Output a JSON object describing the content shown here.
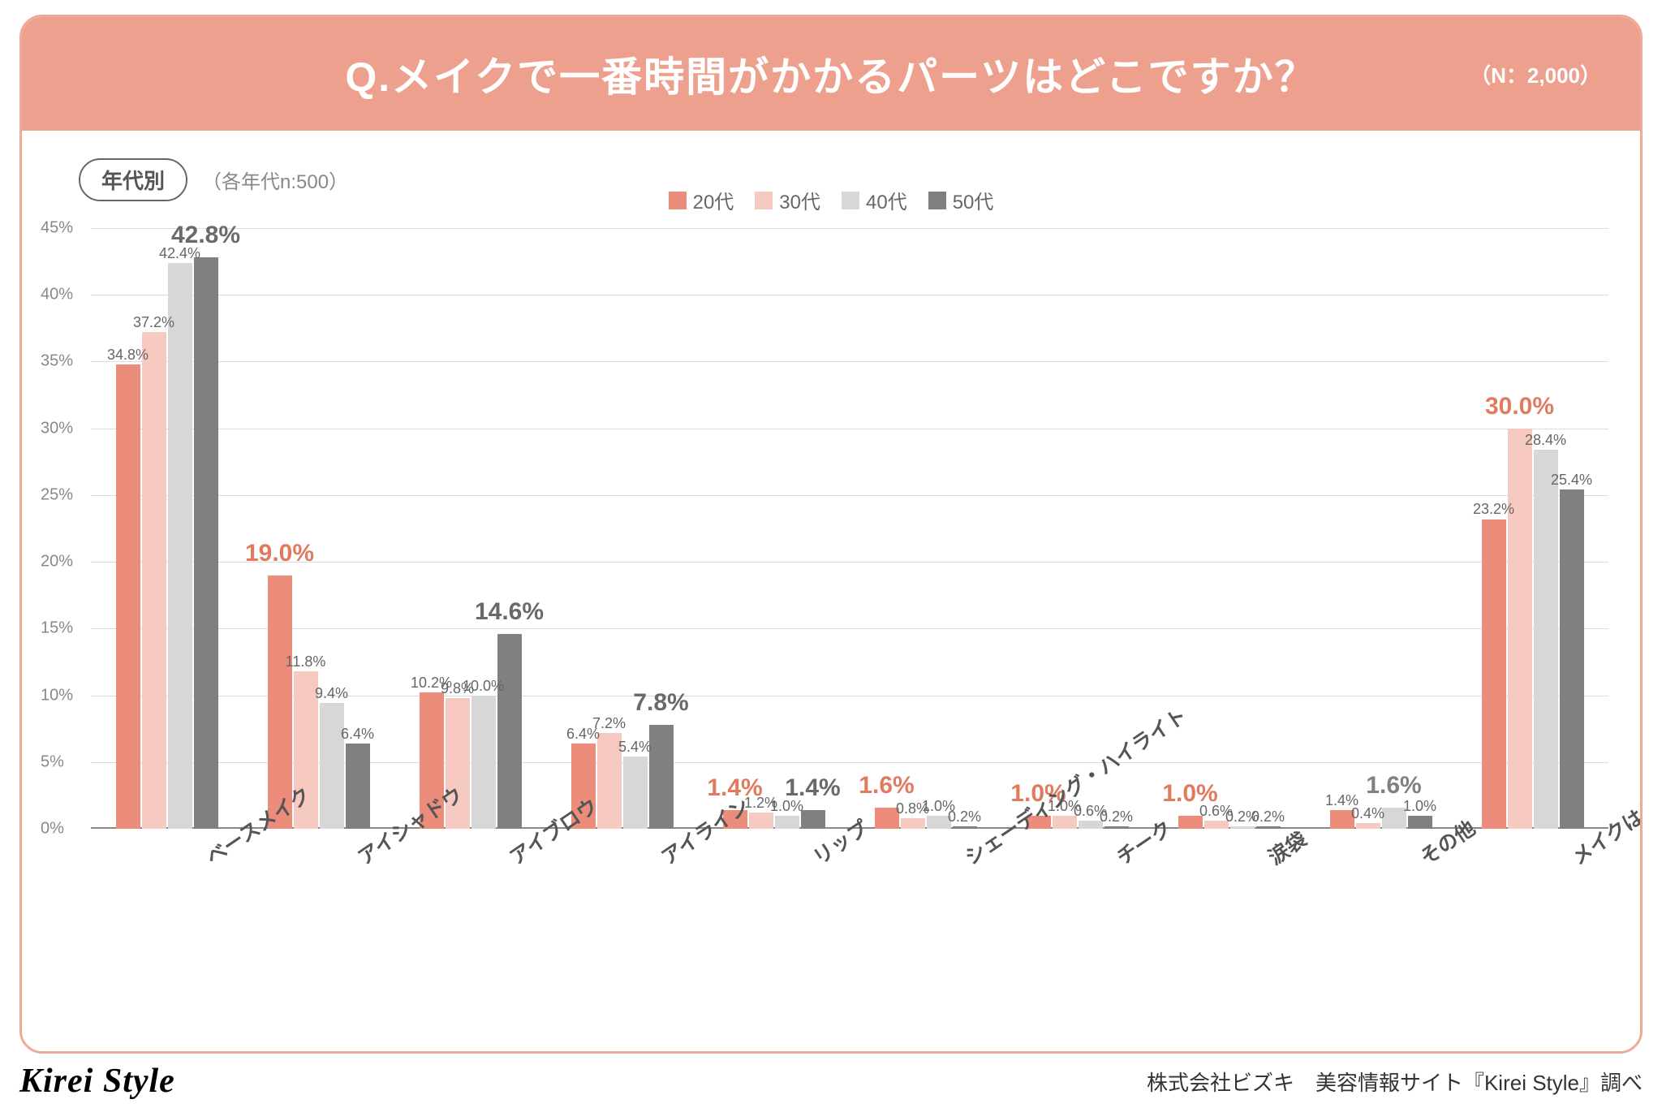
{
  "colors": {
    "frame_border": "#eeaa99",
    "header_bg": "#eea08e",
    "series": [
      "#ec8c7a",
      "#f6cac0",
      "#d7d7d7",
      "#808080"
    ],
    "highlight": [
      "#e07b5f",
      "#e07b5f",
      "#808080",
      "#6a6a6a"
    ]
  },
  "header": {
    "title": "Q.メイクで一番時間がかかるパーツはどこですか？",
    "n_label": "（N：2,000）"
  },
  "badge": {
    "label": "年代別",
    "note": "（各年代n:500）"
  },
  "legend": [
    "20代",
    "30代",
    "40代",
    "50代"
  ],
  "y_axis": {
    "max": 45,
    "step": 5,
    "suffix": "%"
  },
  "categories": [
    {
      "name": "ベースメイク",
      "values": [
        34.8,
        37.2,
        42.4,
        42.8
      ],
      "highlight_index": 3
    },
    {
      "name": "アイシャドウ",
      "values": [
        19.0,
        11.8,
        9.4,
        6.4
      ],
      "highlight_index": 0
    },
    {
      "name": "アイブロウ",
      "values": [
        10.2,
        9.8,
        10.0,
        14.6
      ],
      "highlight_index": 3
    },
    {
      "name": "アイライン",
      "values": [
        6.4,
        7.2,
        5.4,
        7.8
      ],
      "highlight_index": 3
    },
    {
      "name": "リップ",
      "values": [
        1.4,
        1.2,
        1.0,
        1.4
      ],
      "highlight_index": 0,
      "extra_highlight": {
        "index": 3,
        "color": "#6a6a6a"
      }
    },
    {
      "name": "シェーディング・ハイライト",
      "values": [
        1.6,
        0.8,
        1.0,
        0.2
      ],
      "highlight_index": 0
    },
    {
      "name": "チーク",
      "values": [
        1.0,
        1.0,
        0.6,
        0.2
      ],
      "highlight_index": 0
    },
    {
      "name": "涙袋",
      "values": [
        1.0,
        0.6,
        0.2,
        0.2
      ],
      "highlight_index": 0
    },
    {
      "name": "その他",
      "values": [
        1.4,
        0.4,
        1.6,
        1.0
      ],
      "highlight_index": 2
    },
    {
      "name": "メイクはしない",
      "values": [
        23.2,
        30.0,
        28.4,
        25.4
      ],
      "highlight_index": 1
    }
  ],
  "footer": {
    "brand": "Kirei Style",
    "source": "株式会社ビズキ　美容情報サイト『Kirei Style』調べ"
  }
}
